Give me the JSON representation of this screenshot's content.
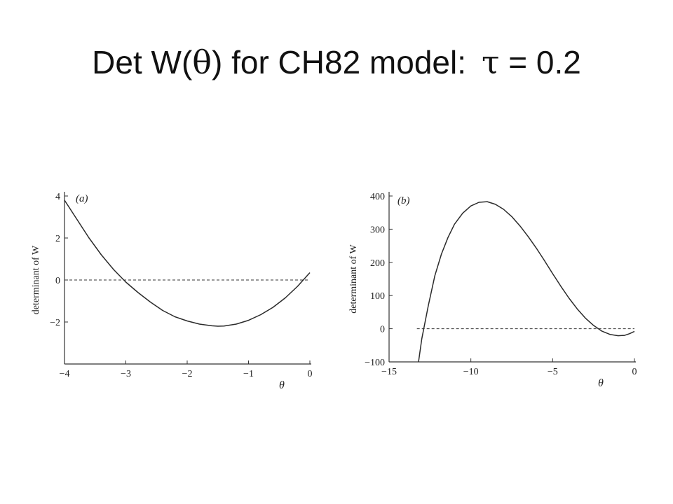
{
  "title": {
    "prefix": "Det W(",
    "theta": "θ",
    "mid": ") for CH82 model:",
    "tau": "τ",
    "suffix": " = 0.2"
  },
  "colors": {
    "text": "#111111",
    "curve": "#2a2a2a",
    "axis": "#333333",
    "zero_line": "#333333"
  },
  "chart_data": [
    {
      "type": "line",
      "panel_label": "(a)",
      "xlabel": "θ",
      "ylabel": "determinant of W",
      "xlim": [
        -4,
        0
      ],
      "ylim": [
        -4,
        4
      ],
      "x_ticks": [
        -4,
        -3,
        -2,
        -1,
        0
      ],
      "x_tick_labels": [
        "−4",
        "−3",
        "−2",
        "−1",
        "0"
      ],
      "y_ticks": [
        -2,
        0,
        2,
        4
      ],
      "y_tick_labels": [
        "−2",
        "0",
        "2",
        "4"
      ],
      "reference_line": {
        "y": 0,
        "style": "dashed"
      },
      "series": [
        {
          "x": [
            -4.0,
            -3.8,
            -3.6,
            -3.4,
            -3.2,
            -3.0,
            -2.8,
            -2.6,
            -2.4,
            -2.2,
            -2.0,
            -1.8,
            -1.6,
            -1.5,
            -1.4,
            -1.2,
            -1.0,
            -0.8,
            -0.6,
            -0.4,
            -0.2,
            0.0
          ],
          "y": [
            3.8,
            2.9,
            2.0,
            1.2,
            0.5,
            -0.1,
            -0.6,
            -1.05,
            -1.45,
            -1.75,
            -1.95,
            -2.1,
            -2.18,
            -2.2,
            -2.19,
            -2.1,
            -1.92,
            -1.65,
            -1.3,
            -0.85,
            -0.3,
            0.35
          ]
        }
      ]
    },
    {
      "type": "line",
      "panel_label": "(b)",
      "xlabel": "θ",
      "ylabel": "determinant of W",
      "xlim": [
        -15,
        0
      ],
      "ylim": [
        -100,
        400
      ],
      "x_ticks": [
        -15,
        -10,
        -5,
        0
      ],
      "x_tick_labels": [
        "−15",
        "−10",
        "−5",
        "0"
      ],
      "y_ticks": [
        -100,
        0,
        100,
        200,
        300,
        400
      ],
      "y_tick_labels": [
        "−100",
        "0",
        "100",
        "200",
        "300",
        "400"
      ],
      "reference_line": {
        "y": 0,
        "style": "dashed",
        "x_start": -13.3
      },
      "series": [
        {
          "x": [
            -13.2,
            -13.0,
            -12.6,
            -12.2,
            -11.8,
            -11.4,
            -11.0,
            -10.5,
            -10.0,
            -9.5,
            -9.0,
            -8.5,
            -8.0,
            -7.5,
            -7.0,
            -6.5,
            -6.0,
            -5.5,
            -5.0,
            -4.5,
            -4.0,
            -3.5,
            -3.0,
            -2.5,
            -2.0,
            -1.5,
            -1.0,
            -0.6,
            -0.3,
            0.0
          ],
          "y": [
            -100,
            -30,
            70,
            160,
            225,
            275,
            315,
            348,
            370,
            381,
            383,
            375,
            360,
            338,
            310,
            278,
            243,
            205,
            166,
            128,
            92,
            60,
            32,
            10,
            -7,
            -17,
            -21,
            -20,
            -15,
            -8
          ]
        }
      ]
    }
  ]
}
